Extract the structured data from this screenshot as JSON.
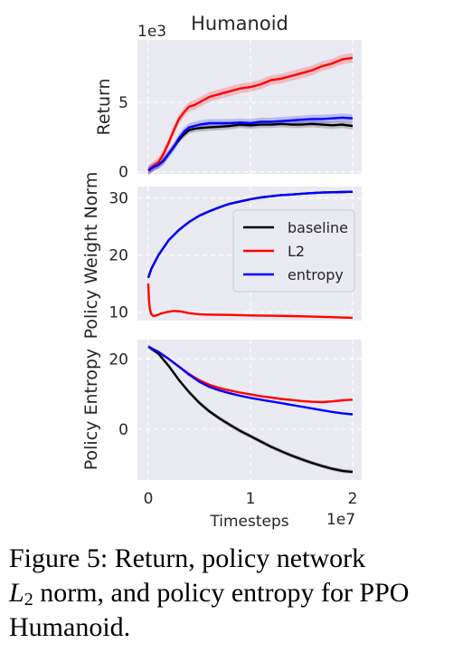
{
  "chart_data": [
    {
      "type": "line",
      "title": "Humanoid",
      "ylabel": "Return",
      "y_multiplier": "1e3",
      "xlim": [
        0,
        20000000
      ],
      "ylim": [
        -0.15,
        9.5
      ],
      "yticks": [
        0,
        5
      ],
      "x_ticks_shown": false,
      "grid": true,
      "series": [
        {
          "name": "baseline",
          "color": "#000000",
          "band": 0.25,
          "x": [
            0,
            0.5,
            1,
            1.5,
            2,
            2.5,
            3,
            3.5,
            4,
            4.5,
            5,
            6,
            7,
            8,
            9,
            10,
            11,
            12,
            13,
            14,
            15,
            16,
            17,
            18,
            19,
            20
          ],
          "y": [
            0.1,
            0.35,
            0.5,
            0.8,
            1.3,
            1.8,
            2.3,
            2.7,
            3.0,
            3.1,
            3.15,
            3.2,
            3.25,
            3.3,
            3.4,
            3.35,
            3.4,
            3.4,
            3.45,
            3.4,
            3.4,
            3.45,
            3.4,
            3.35,
            3.4,
            3.3
          ]
        },
        {
          "name": "L2",
          "color": "#ff0000",
          "band": 0.35,
          "x": [
            0,
            0.5,
            1,
            1.5,
            2,
            2.5,
            3,
            3.5,
            4,
            4.5,
            5,
            6,
            7,
            8,
            9,
            10,
            11,
            12,
            13,
            14,
            15,
            16,
            17,
            18,
            19,
            20
          ],
          "y": [
            0.1,
            0.4,
            0.7,
            1.3,
            2.1,
            3.0,
            3.8,
            4.3,
            4.7,
            4.8,
            5.0,
            5.4,
            5.6,
            5.8,
            6.0,
            6.1,
            6.3,
            6.6,
            6.7,
            6.9,
            7.1,
            7.3,
            7.6,
            7.8,
            8.1,
            8.2
          ]
        },
        {
          "name": "entropy",
          "color": "#0000ff",
          "band": 0.3,
          "x": [
            0,
            0.5,
            1,
            1.5,
            2,
            2.5,
            3,
            3.5,
            4,
            4.5,
            5,
            6,
            7,
            8,
            9,
            10,
            11,
            12,
            13,
            14,
            15,
            16,
            17,
            18,
            19,
            20
          ],
          "y": [
            0.1,
            0.35,
            0.5,
            0.8,
            1.3,
            1.8,
            2.4,
            2.9,
            3.2,
            3.3,
            3.4,
            3.5,
            3.5,
            3.5,
            3.55,
            3.5,
            3.6,
            3.6,
            3.65,
            3.7,
            3.75,
            3.8,
            3.8,
            3.85,
            3.9,
            3.85
          ]
        }
      ]
    },
    {
      "type": "line",
      "ylabel": "Policy Weight Norm",
      "xlim": [
        0,
        20000000
      ],
      "ylim": [
        8.5,
        32
      ],
      "yticks": [
        10,
        20,
        30
      ],
      "x_ticks_shown": false,
      "grid": true,
      "legend": {
        "placement": "right",
        "entries": [
          "baseline",
          "L2",
          "entropy"
        ]
      },
      "series": [
        {
          "name": "baseline",
          "color": "#000000",
          "x": [
            0,
            0.3,
            1,
            2,
            3,
            4,
            5,
            6,
            7,
            8,
            9,
            10,
            11,
            12,
            13,
            14,
            15,
            16,
            17,
            18,
            19,
            20
          ],
          "y": [
            16.0,
            17.6,
            20.0,
            22.6,
            24.4,
            25.8,
            26.9,
            27.7,
            28.4,
            29.0,
            29.4,
            29.8,
            30.1,
            30.3,
            30.5,
            30.6,
            30.75,
            30.85,
            30.95,
            31.0,
            31.05,
            31.1
          ]
        },
        {
          "name": "L2",
          "color": "#ff0000",
          "x": [
            0,
            0.05,
            0.15,
            0.3,
            0.5,
            0.8,
            1.2,
            1.8,
            2.5,
            3.2,
            4,
            5,
            6,
            8,
            10,
            12,
            14,
            16,
            18,
            20
          ],
          "y": [
            15.0,
            12.5,
            10.5,
            9.6,
            9.3,
            9.4,
            9.7,
            10.0,
            10.2,
            10.1,
            9.8,
            9.6,
            9.55,
            9.5,
            9.4,
            9.35,
            9.3,
            9.2,
            9.1,
            9.0
          ]
        },
        {
          "name": "entropy",
          "color": "#0000ff",
          "x": [
            0,
            0.3,
            1,
            2,
            3,
            4,
            5,
            6,
            7,
            8,
            9,
            10,
            11,
            12,
            13,
            14,
            15,
            16,
            17,
            18,
            19,
            20
          ],
          "y": [
            16.0,
            17.6,
            20.0,
            22.6,
            24.4,
            25.8,
            26.9,
            27.7,
            28.4,
            29.0,
            29.4,
            29.8,
            30.1,
            30.3,
            30.5,
            30.6,
            30.75,
            30.85,
            30.95,
            31.0,
            31.05,
            31.1
          ]
        }
      ]
    },
    {
      "type": "line",
      "ylabel": "Policy Entropy",
      "xlabel": "Timesteps",
      "x_multiplier": "1e7",
      "xlim": [
        0,
        20000000
      ],
      "ylim": [
        -14.5,
        25.5
      ],
      "yticks": [
        0,
        20
      ],
      "xticks": [
        0,
        1,
        2
      ],
      "grid": true,
      "series": [
        {
          "name": "baseline",
          "color": "#000000",
          "band": 0.6,
          "x": [
            0,
            1,
            2,
            3,
            4,
            5,
            6,
            7,
            8,
            9,
            10,
            11,
            12,
            13,
            14,
            15,
            16,
            17,
            18,
            19,
            20
          ],
          "y": [
            23.5,
            21.5,
            18.0,
            14.0,
            10.5,
            7.5,
            5.0,
            3.0,
            1.2,
            -0.5,
            -2.0,
            -3.5,
            -5.0,
            -6.3,
            -7.5,
            -8.6,
            -9.6,
            -10.5,
            -11.3,
            -11.9,
            -12.2
          ]
        },
        {
          "name": "L2",
          "color": "#ff0000",
          "band": 0.3,
          "x": [
            0,
            1,
            2,
            3,
            4,
            5,
            6,
            7,
            8,
            9,
            10,
            11,
            12,
            13,
            14,
            15,
            16,
            17,
            18,
            19,
            20
          ],
          "y": [
            23.5,
            22.0,
            20.0,
            17.8,
            15.7,
            13.9,
            12.6,
            11.7,
            11.0,
            10.4,
            9.9,
            9.4,
            9.0,
            8.6,
            8.3,
            8.0,
            7.8,
            7.7,
            7.9,
            8.2,
            8.4
          ]
        },
        {
          "name": "entropy",
          "color": "#0000ff",
          "band": 0.3,
          "x": [
            0,
            1,
            2,
            3,
            4,
            5,
            6,
            7,
            8,
            9,
            10,
            11,
            12,
            13,
            14,
            15,
            16,
            17,
            18,
            19,
            20
          ],
          "y": [
            23.5,
            22.0,
            20.0,
            17.8,
            15.5,
            13.5,
            12.0,
            11.0,
            10.2,
            9.5,
            8.9,
            8.4,
            7.9,
            7.4,
            6.9,
            6.4,
            5.9,
            5.4,
            4.9,
            4.5,
            4.2
          ]
        }
      ]
    }
  ],
  "caption": {
    "lead": "Figure 5: Return, policy network",
    "math_base": "L",
    "math_sub": "2",
    "rest": " norm, and policy entropy for PPO Humanoid."
  }
}
